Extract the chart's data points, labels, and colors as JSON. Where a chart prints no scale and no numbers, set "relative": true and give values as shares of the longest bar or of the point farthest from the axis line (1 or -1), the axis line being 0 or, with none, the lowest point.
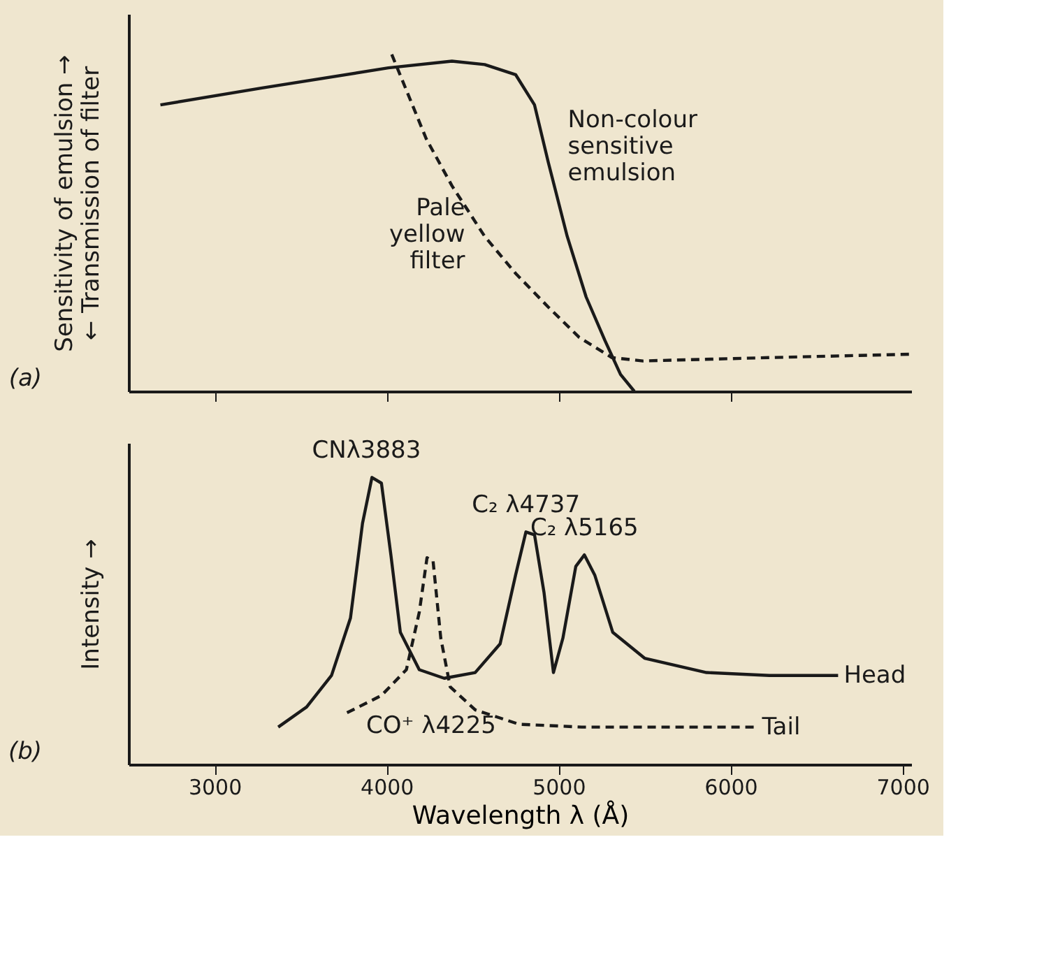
{
  "chart_data": [
    {
      "type": "line",
      "relative": true,
      "ylabel": "Sensitivity of emulsion →\n← Transmission of filter",
      "xlim": [
        2500,
        7050
      ],
      "xticks": [
        {
          "value": 3000,
          "label": null
        },
        {
          "value": 4000,
          "label": null
        },
        {
          "value": 5000,
          "label": null
        },
        {
          "value": 6000,
          "label": null
        }
      ],
      "tick_labels": false,
      "legend": false,
      "grid": false,
      "marker": "none",
      "annotations": [
        "(a)"
      ],
      "series": [
        {
          "name": "Non-colour sensitive emulsion",
          "color": "#1a1a1a",
          "line_style": "solid",
          "x": [
            2685,
            3270,
            4010,
            4380,
            4570,
            4750,
            4860,
            4940,
            5050,
            5160,
            5270,
            5360,
            5440
          ],
          "values": [
            0.85,
            0.9,
            0.96,
            0.98,
            0.97,
            0.94,
            0.85,
            0.68,
            0.46,
            0.28,
            0.15,
            0.05,
            0
          ]
        },
        {
          "name": "Pale yellow filter",
          "color": "#1a1a1a",
          "line_style": "dashed",
          "x": [
            4030,
            4230,
            4380,
            4570,
            4750,
            4940,
            5120,
            5310,
            5490,
            6230,
            7040
          ],
          "values": [
            1,
            0.75,
            0.61,
            0.46,
            0.35,
            0.25,
            0.16,
            0.1,
            0.09,
            0.1,
            0.11
          ]
        }
      ]
    },
    {
      "type": "line",
      "relative": true,
      "ylabel": "Intensity →",
      "xlabel": "Wavelength λ (Å)",
      "xlim": [
        2500,
        7050
      ],
      "xticks": [
        3000,
        4000,
        5000,
        6000,
        7000
      ],
      "tick_labels": "x",
      "legend": false,
      "grid": false,
      "marker": "none",
      "annotations": [
        "(b)",
        {
          "text": "CNλ3883",
          "x": 3883,
          "y": 1.0
        },
        {
          "text": "C₂ λ4737",
          "x": 4810,
          "y": 0.81
        },
        {
          "text": "C₂ λ5165",
          "x": 5150,
          "y": 0.73
        },
        "CO⁺ λ4225"
      ],
      "series": [
        {
          "name": "Head",
          "color": "#1a1a1a",
          "line_style": "solid",
          "x": [
            3370,
            3535,
            3680,
            3790,
            3860,
            3915,
            3970,
            4025,
            4080,
            4190,
            4335,
            4515,
            4660,
            4750,
            4810,
            4860,
            4915,
            4970,
            5025,
            5100,
            5150,
            5210,
            5315,
            5500,
            5860,
            6225,
            6625
          ],
          "values": [
            0.13,
            0.2,
            0.31,
            0.51,
            0.84,
            1.0,
            0.98,
            0.73,
            0.46,
            0.33,
            0.3,
            0.32,
            0.42,
            0.66,
            0.81,
            0.8,
            0.6,
            0.32,
            0.44,
            0.69,
            0.73,
            0.66,
            0.46,
            0.37,
            0.32,
            0.31,
            0.31
          ]
        },
        {
          "name": "Tail",
          "color": "#1a1a1a",
          "line_style": "dashed",
          "x": [
            3770,
            3970,
            4115,
            4190,
            4235,
            4270,
            4315,
            4370,
            4515,
            4770,
            5135,
            6150
          ],
          "values": [
            0.18,
            0.24,
            0.33,
            0.53,
            0.72,
            0.71,
            0.44,
            0.27,
            0.19,
            0.14,
            0.13,
            0.13
          ]
        }
      ]
    }
  ]
}
